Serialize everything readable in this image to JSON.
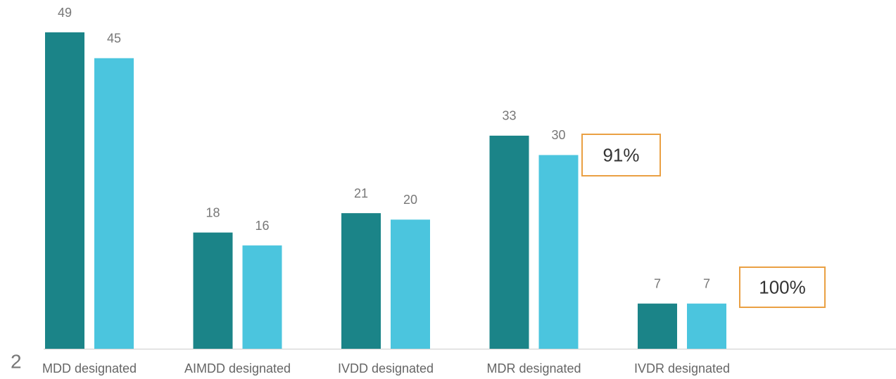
{
  "page_number": "2",
  "chart_data": {
    "type": "bar",
    "categories": [
      "MDD designated",
      "AIMDD designated",
      "IVDD designated",
      "MDR designated",
      "IVDR designated"
    ],
    "series": [
      {
        "color": "#1b8488",
        "values": [
          49,
          18,
          21,
          33,
          7
        ]
      },
      {
        "color": "#4bc5de",
        "values": [
          45,
          16,
          20,
          30,
          7
        ]
      }
    ],
    "annotations": [
      "91%",
      "100%"
    ],
    "annotation_color": "#eaa043"
  }
}
